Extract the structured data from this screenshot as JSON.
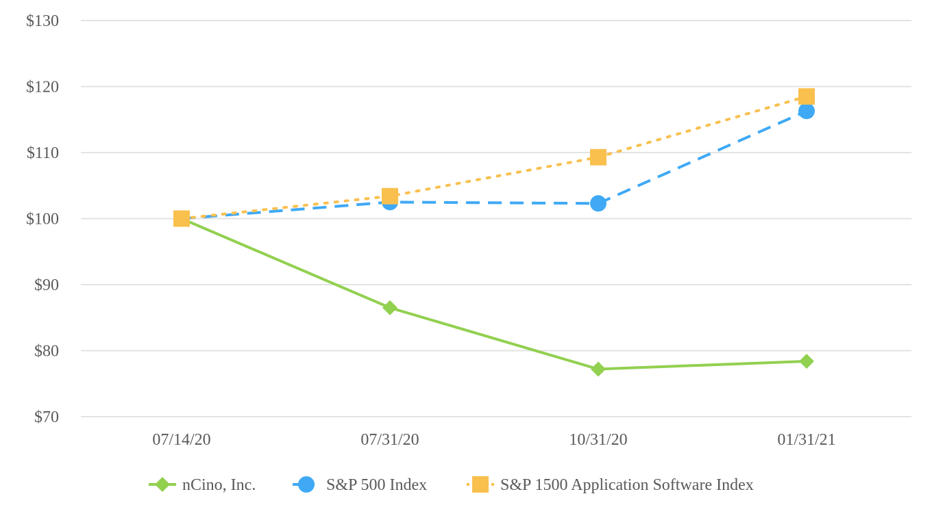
{
  "chart_data": {
    "type": "line",
    "categories": [
      "07/14/20",
      "07/31/20",
      "10/31/20",
      "01/31/21"
    ],
    "ylim": [
      70,
      130
    ],
    "y_ticks": [
      70,
      80,
      90,
      100,
      110,
      120,
      130
    ],
    "y_tick_labels": [
      "$70",
      "$80",
      "$90",
      "$100",
      "$110",
      "$120",
      "$130"
    ],
    "grid": true,
    "legend_position": "bottom",
    "series": [
      {
        "name": "nCino, Inc.",
        "values": [
          100,
          86.5,
          77.2,
          78.4
        ],
        "color": "#92d050",
        "marker": "diamond",
        "line_style": "solid"
      },
      {
        "name": "S&P 500 Index",
        "values": [
          100,
          102.5,
          102.3,
          116.3
        ],
        "color": "#3fa9f5",
        "marker": "circle",
        "line_style": "dashed"
      },
      {
        "name": "S&P 1500 Application Software Index",
        "values": [
          100,
          103.4,
          109.3,
          118.5
        ],
        "color": "#f9c04e",
        "marker": "square",
        "line_style": "dotted"
      }
    ]
  }
}
